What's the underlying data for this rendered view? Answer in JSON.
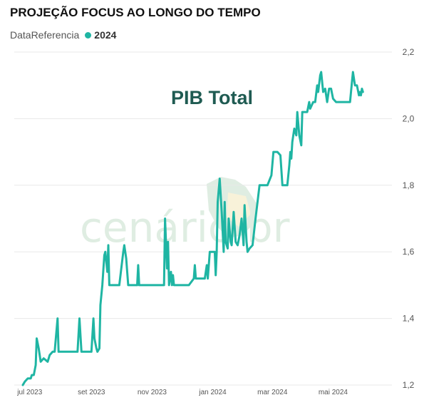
{
  "chart_data": {
    "type": "line",
    "title": "PROJEÇÃO FOCUS AO LONGO DO TEMPO",
    "legend": {
      "field": "DataReferencia",
      "placement": "top-left"
    },
    "annotation": "PIB Total",
    "watermark": "cenário br",
    "colors": {
      "series": "#1fb5a3",
      "grid": "#e8e8e8"
    },
    "grid": true,
    "x_ticks": [
      {
        "label": "jul 2023",
        "date": "2023-07-01"
      },
      {
        "label": "set 2023",
        "date": "2023-09-01"
      },
      {
        "label": "nov 2023",
        "date": "2023-11-01"
      },
      {
        "label": "jan 2024",
        "date": "2024-01-01"
      },
      {
        "label": "mar 2024",
        "date": "2024-03-01"
      },
      {
        "label": "mai 2024",
        "date": "2024-05-01"
      }
    ],
    "xlim": [
      "2023-06-24",
      "2024-06-22"
    ],
    "y_ticks": [
      "1,2",
      "1,4",
      "1,6",
      "1,8",
      "2,0",
      "2,2"
    ],
    "ylim": [
      1.2,
      2.2
    ],
    "series": [
      {
        "name": "2024",
        "points": [
          [
            "2023-06-24",
            1.2
          ],
          [
            "2023-06-26",
            1.21
          ],
          [
            "2023-06-29",
            1.22
          ],
          [
            "2023-07-02",
            1.22
          ],
          [
            "2023-07-03",
            1.23
          ],
          [
            "2023-07-05",
            1.23
          ],
          [
            "2023-07-07",
            1.26
          ],
          [
            "2023-07-08",
            1.34
          ],
          [
            "2023-07-10",
            1.31
          ],
          [
            "2023-07-12",
            1.27
          ],
          [
            "2023-07-15",
            1.28
          ],
          [
            "2023-07-19",
            1.27
          ],
          [
            "2023-07-21",
            1.29
          ],
          [
            "2023-07-24",
            1.3
          ],
          [
            "2023-07-26",
            1.3
          ],
          [
            "2023-07-29",
            1.4
          ],
          [
            "2023-07-30",
            1.3
          ],
          [
            "2023-08-04",
            1.3
          ],
          [
            "2023-08-09",
            1.3
          ],
          [
            "2023-08-13",
            1.3
          ],
          [
            "2023-08-18",
            1.3
          ],
          [
            "2023-08-20",
            1.4
          ],
          [
            "2023-08-22",
            1.3
          ],
          [
            "2023-08-27",
            1.3
          ],
          [
            "2023-09-01",
            1.3
          ],
          [
            "2023-09-03",
            1.4
          ],
          [
            "2023-09-04",
            1.34
          ],
          [
            "2023-09-06",
            1.31
          ],
          [
            "2023-09-07",
            1.3
          ],
          [
            "2023-09-09",
            1.31
          ],
          [
            "2023-09-10",
            1.44
          ],
          [
            "2023-09-12",
            1.5
          ],
          [
            "2023-09-14",
            1.59
          ],
          [
            "2023-09-15",
            1.6
          ],
          [
            "2023-09-17",
            1.54
          ],
          [
            "2023-09-18",
            1.62
          ],
          [
            "2023-09-19",
            1.5
          ],
          [
            "2023-09-24",
            1.5
          ],
          [
            "2023-09-29",
            1.5
          ],
          [
            "2023-10-03",
            1.6
          ],
          [
            "2023-10-04",
            1.62
          ],
          [
            "2023-10-06",
            1.58
          ],
          [
            "2023-10-08",
            1.5
          ],
          [
            "2023-10-11",
            1.5
          ],
          [
            "2023-10-14",
            1.5
          ],
          [
            "2023-10-17",
            1.5
          ],
          [
            "2023-10-18",
            1.56
          ],
          [
            "2023-10-19",
            1.5
          ],
          [
            "2023-10-24",
            1.5
          ],
          [
            "2023-10-29",
            1.5
          ],
          [
            "2023-11-03",
            1.5
          ],
          [
            "2023-11-08",
            1.5
          ],
          [
            "2023-11-13",
            1.5
          ],
          [
            "2023-11-14",
            1.7
          ],
          [
            "2023-11-16",
            1.55
          ],
          [
            "2023-11-17",
            1.63
          ],
          [
            "2023-11-18",
            1.5
          ],
          [
            "2023-11-20",
            1.54
          ],
          [
            "2023-11-21",
            1.5
          ],
          [
            "2023-11-22",
            1.53
          ],
          [
            "2023-11-23",
            1.5
          ],
          [
            "2023-11-28",
            1.5
          ],
          [
            "2023-12-03",
            1.5
          ],
          [
            "2023-12-08",
            1.5
          ],
          [
            "2023-12-13",
            1.52
          ],
          [
            "2023-12-14",
            1.56
          ],
          [
            "2023-12-15",
            1.52
          ],
          [
            "2023-12-20",
            1.52
          ],
          [
            "2023-12-24",
            1.52
          ],
          [
            "2023-12-26",
            1.56
          ],
          [
            "2023-12-27",
            1.52
          ],
          [
            "2023-12-29",
            1.6
          ],
          [
            "2024-01-03",
            1.6
          ],
          [
            "2024-01-04",
            1.53
          ],
          [
            "2024-01-05",
            1.6
          ],
          [
            "2024-01-06",
            1.75
          ],
          [
            "2024-01-08",
            1.82
          ],
          [
            "2024-01-10",
            1.72
          ],
          [
            "2024-01-12",
            1.6
          ],
          [
            "2024-01-13",
            1.75
          ],
          [
            "2024-01-14",
            1.63
          ],
          [
            "2024-01-16",
            1.61
          ],
          [
            "2024-01-17",
            1.7
          ],
          [
            "2024-01-19",
            1.63
          ],
          [
            "2024-01-20",
            1.62
          ],
          [
            "2024-01-22",
            1.72
          ],
          [
            "2024-01-24",
            1.63
          ],
          [
            "2024-01-26",
            1.62
          ],
          [
            "2024-01-28",
            1.65
          ],
          [
            "2024-01-30",
            1.7
          ],
          [
            "2024-02-01",
            1.62
          ],
          [
            "2024-02-02",
            1.74
          ],
          [
            "2024-02-04",
            1.63
          ],
          [
            "2024-02-05",
            1.6
          ],
          [
            "2024-02-07",
            1.61
          ],
          [
            "2024-02-10",
            1.62
          ],
          [
            "2024-02-13",
            1.7
          ],
          [
            "2024-02-15",
            1.75
          ],
          [
            "2024-02-17",
            1.8
          ],
          [
            "2024-02-21",
            1.8
          ],
          [
            "2024-02-25",
            1.8
          ],
          [
            "2024-02-29",
            1.83
          ],
          [
            "2024-03-02",
            1.9
          ],
          [
            "2024-03-06",
            1.9
          ],
          [
            "2024-03-09",
            1.89
          ],
          [
            "2024-03-11",
            1.8
          ],
          [
            "2024-03-14",
            1.8
          ],
          [
            "2024-03-16",
            1.8
          ],
          [
            "2024-03-18",
            1.86
          ],
          [
            "2024-03-19",
            1.9
          ],
          [
            "2024-03-20",
            1.88
          ],
          [
            "2024-03-21",
            1.93
          ],
          [
            "2024-03-23",
            1.97
          ],
          [
            "2024-03-25",
            1.95
          ],
          [
            "2024-03-26",
            2.02
          ],
          [
            "2024-03-28",
            1.95
          ],
          [
            "2024-03-30",
            1.92
          ],
          [
            "2024-03-31",
            2.02
          ],
          [
            "2024-04-01",
            2.02
          ],
          [
            "2024-04-05",
            2.02
          ],
          [
            "2024-04-07",
            2.05
          ],
          [
            "2024-04-08",
            2.03
          ],
          [
            "2024-04-11",
            2.05
          ],
          [
            "2024-04-13",
            2.05
          ],
          [
            "2024-04-15",
            2.1
          ],
          [
            "2024-04-16",
            2.08
          ],
          [
            "2024-04-18",
            2.13
          ],
          [
            "2024-04-19",
            2.14
          ],
          [
            "2024-04-21",
            2.08
          ],
          [
            "2024-04-23",
            2.09
          ],
          [
            "2024-04-25",
            2.05
          ],
          [
            "2024-04-27",
            2.09
          ],
          [
            "2024-04-29",
            2.09
          ],
          [
            "2024-05-01",
            2.06
          ],
          [
            "2024-05-04",
            2.05
          ],
          [
            "2024-05-09",
            2.05
          ],
          [
            "2024-05-14",
            2.05
          ],
          [
            "2024-05-18",
            2.05
          ],
          [
            "2024-05-20",
            2.11
          ],
          [
            "2024-05-21",
            2.14
          ],
          [
            "2024-05-23",
            2.1
          ],
          [
            "2024-05-25",
            2.1
          ],
          [
            "2024-05-27",
            2.07
          ],
          [
            "2024-05-28",
            2.08
          ],
          [
            "2024-05-29",
            2.07
          ],
          [
            "2024-05-30",
            2.09
          ],
          [
            "2024-05-31",
            2.08
          ]
        ]
      }
    ]
  }
}
